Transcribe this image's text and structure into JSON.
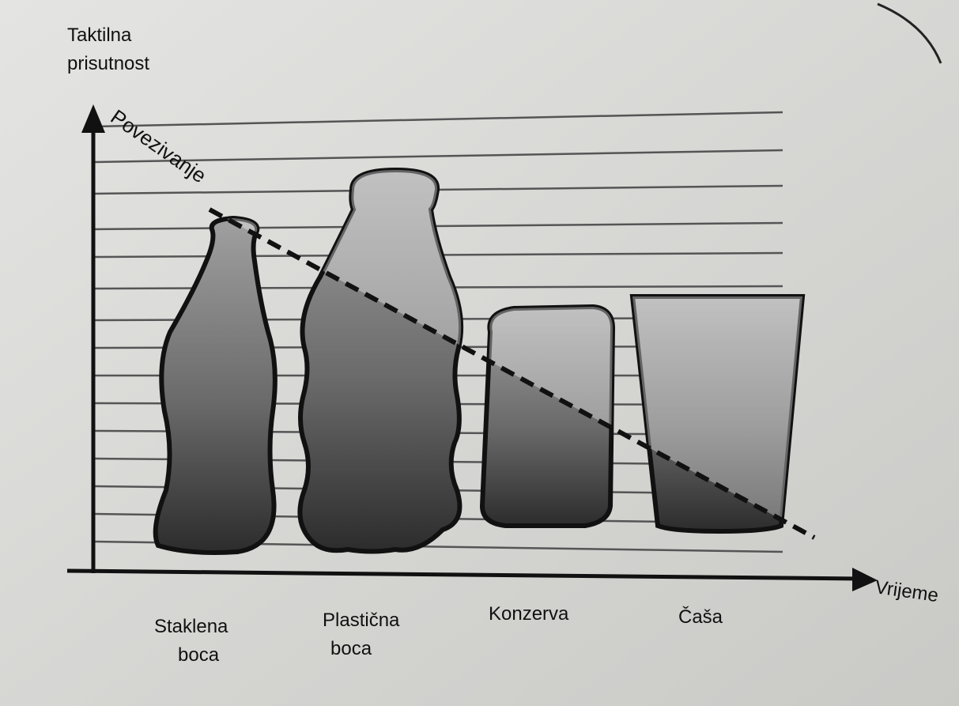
{
  "y_axis_label": [
    "Taktilna",
    "prisutnost"
  ],
  "trend_label": "Povezivanje",
  "x_axis_label": "Vrijeme",
  "items": [
    {
      "label": [
        "Staklena",
        "boca"
      ]
    },
    {
      "label": [
        "Plastična",
        "boca"
      ]
    },
    {
      "label": [
        "Konzerva"
      ]
    },
    {
      "label": [
        "Čaša"
      ]
    }
  ]
}
